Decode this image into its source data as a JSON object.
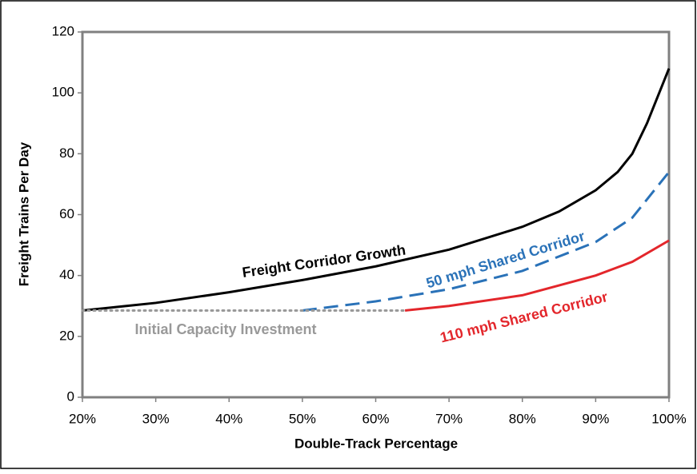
{
  "chart_data": {
    "type": "line",
    "x_label": "Double-Track Percentage",
    "y_label": "Freight Trains Per Day",
    "xlim": [
      20,
      100
    ],
    "xticks": [
      {
        "value": 20,
        "label": "20%"
      },
      {
        "value": 30,
        "label": "30%"
      },
      {
        "value": 40,
        "label": "40%"
      },
      {
        "value": 50,
        "label": "50%"
      },
      {
        "value": 60,
        "label": "60%"
      },
      {
        "value": 70,
        "label": "70%"
      },
      {
        "value": 80,
        "label": "80%"
      },
      {
        "value": 90,
        "label": "90%"
      },
      {
        "value": 100,
        "label": "100%"
      }
    ],
    "ylim": [
      0,
      120
    ],
    "yticks": [
      0,
      20,
      40,
      60,
      80,
      100,
      120
    ],
    "grid": false,
    "series": [
      {
        "name": "Freight Corridor Growth",
        "color": "#000000",
        "style": "solid",
        "x": [
          20,
          30,
          40,
          50,
          60,
          70,
          80,
          85,
          90,
          93,
          95,
          97,
          99,
          100
        ],
        "values": [
          28.5,
          31,
          34.5,
          38.5,
          43,
          48.5,
          56,
          61,
          68,
          74,
          80,
          90,
          102,
          108
        ]
      },
      {
        "name": "50 mph Shared Corridor",
        "color": "#2a72b8",
        "style": "dashed",
        "x": [
          50,
          60,
          70,
          80,
          90,
          95,
          100
        ],
        "values": [
          28.5,
          31.5,
          35.5,
          41.5,
          51,
          59,
          74
        ]
      },
      {
        "name": "110 mph Shared Corridor",
        "color": "#e3262b",
        "style": "solid",
        "x": [
          64,
          70,
          80,
          90,
          95,
          100
        ],
        "values": [
          28.5,
          30,
          33.5,
          40,
          44.5,
          51.5
        ]
      },
      {
        "name": "Initial Capacity Investment",
        "color": "#999999",
        "style": "dotted",
        "x": [
          20,
          64
        ],
        "values": [
          28.5,
          28.5
        ]
      }
    ]
  }
}
